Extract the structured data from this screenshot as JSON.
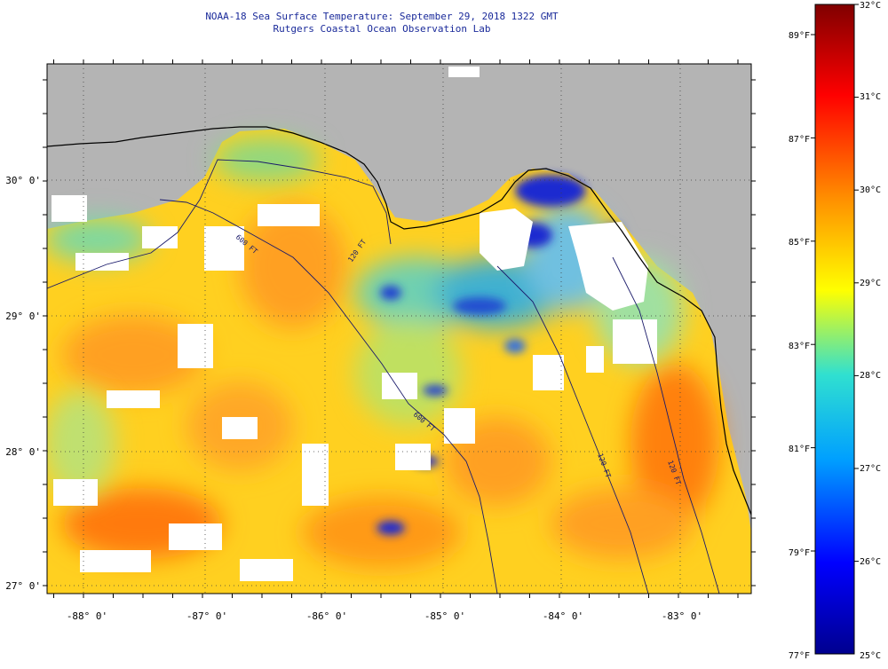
{
  "header": {
    "title": "NOAA-18 Sea Surface Temperature:  September 29, 2018 1322 GMT",
    "subtitle": "Rutgers Coastal Ocean Observation Lab"
  },
  "map": {
    "longitude_labels": [
      "-88° 0'",
      "-87° 0'",
      "-86° 0'",
      "-85° 0'",
      "-84° 0'",
      "-83° 0'"
    ],
    "latitude_labels": [
      "30° 0'",
      "29° 0'",
      "28° 0'",
      "27° 0'"
    ],
    "contour_labels": [
      "120 FT",
      "600 FT",
      "600 FT",
      "120 FT",
      "120 FT"
    ]
  },
  "colorbar": {
    "celsius_labels": [
      "32°C",
      "31°C",
      "30°C",
      "29°C",
      "28°C",
      "27°C",
      "26°C",
      "25°C"
    ],
    "fahrenheit_labels": [
      "89°F",
      "87°F",
      "85°F",
      "83°F",
      "81°F",
      "79°F",
      "77°F"
    ],
    "colors": [
      "#00008f",
      "#0000ff",
      "#00a0ff",
      "#30e0d0",
      "#ffff00",
      "#ff9000",
      "#ff0000",
      "#800000"
    ]
  },
  "colors": {
    "land": "#b4b4b4",
    "cloud": "#ffffff",
    "water_warm": "#ff9a1a",
    "water_mid": "#ffd020",
    "water_cool": "#7ed8a0",
    "water_cold": "#1a2ad0",
    "title_text": "#1a2a9a"
  }
}
